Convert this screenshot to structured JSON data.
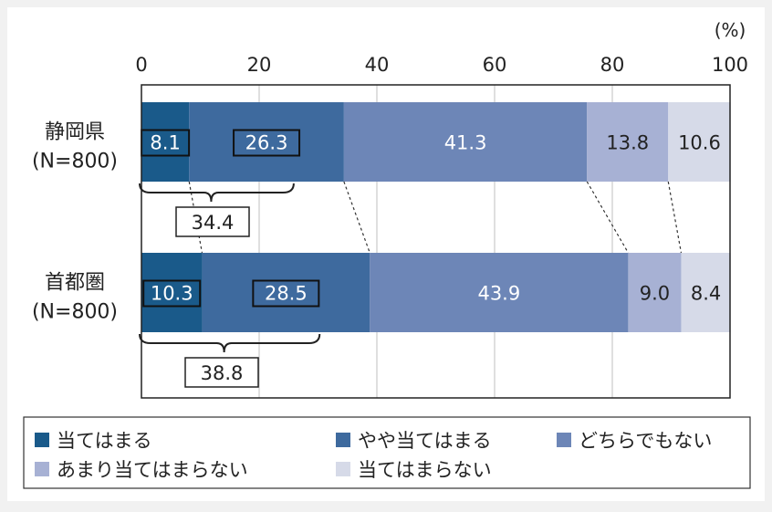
{
  "chart_data": {
    "type": "bar",
    "stacked": true,
    "orientation": "horizontal",
    "unit_label": "(%)",
    "xlim": [
      0,
      100
    ],
    "x_ticks": [
      "0",
      "20",
      "40",
      "60",
      "80",
      "100"
    ],
    "grid": true,
    "legend_position": "bottom",
    "categories": [
      {
        "line1": "静岡県",
        "line2": "(N=800)"
      },
      {
        "line1": "首都圏",
        "line2": "(N=800)"
      }
    ],
    "series": [
      {
        "name": "当てはまる",
        "color": "#1a5a8a",
        "values": [
          8.1,
          10.3
        ]
      },
      {
        "name": "やや当てはまる",
        "color": "#3e6a9e",
        "values": [
          26.3,
          28.5
        ]
      },
      {
        "name": "どちらでもない",
        "color": "#6d86b7",
        "values": [
          41.3,
          43.9
        ]
      },
      {
        "name": "あまり当てはまらない",
        "color": "#a7b1d4",
        "values": [
          13.8,
          9.0
        ]
      },
      {
        "name": "当てはまらない",
        "color": "#d6dae8",
        "values": [
          10.6,
          8.4
        ]
      }
    ],
    "subtotals": [
      "34.4",
      "38.8"
    ]
  }
}
